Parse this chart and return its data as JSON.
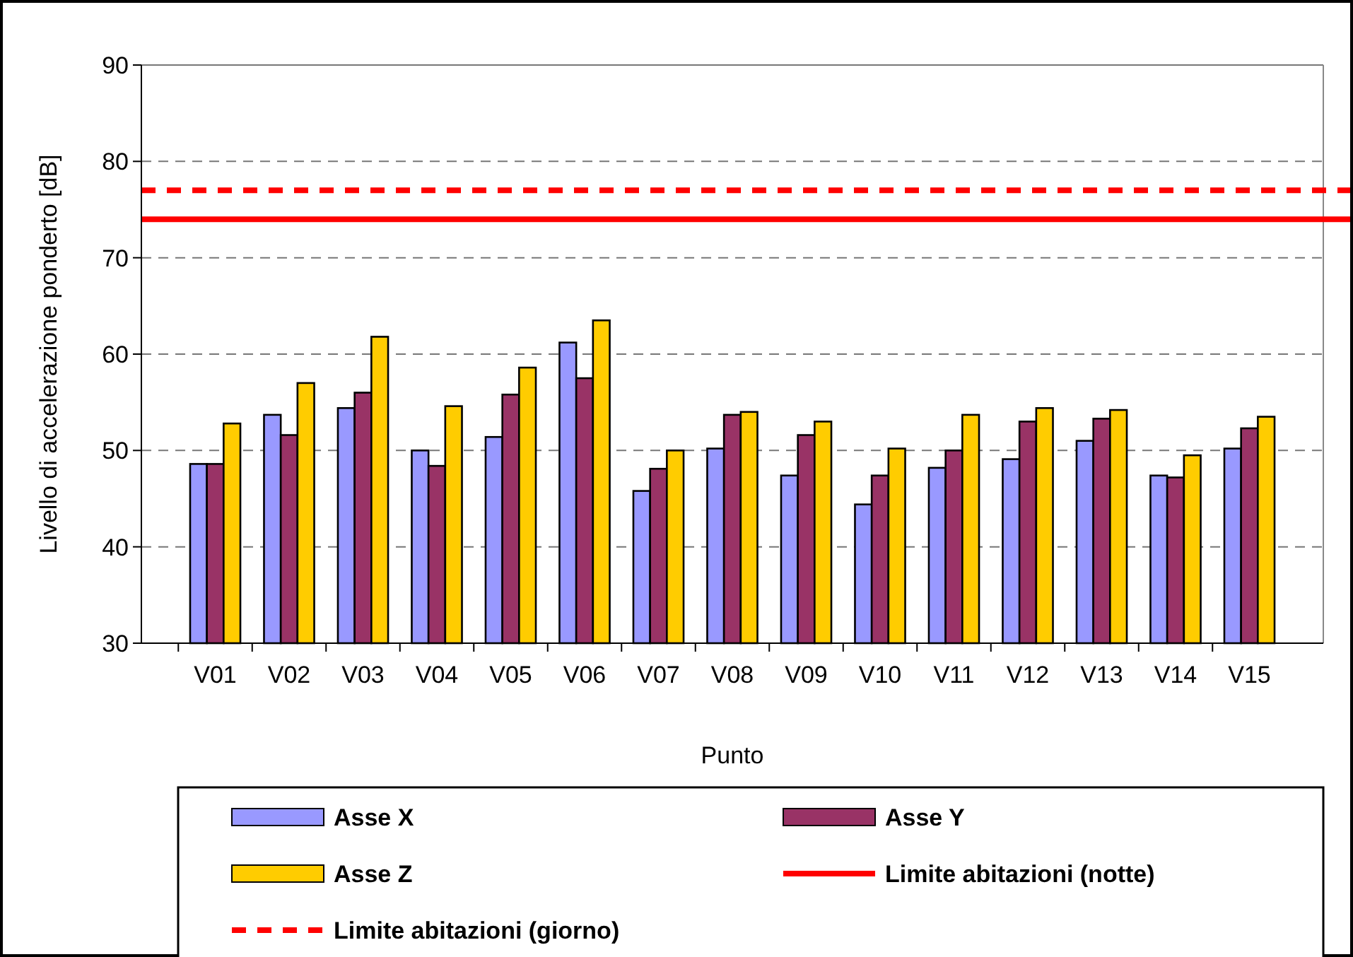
{
  "chart_data": {
    "type": "bar",
    "xlabel": "Punto",
    "ylabel": "Livello di accelerazione ponderto [dB]",
    "categories": [
      "V01",
      "V02",
      "V03",
      "V04",
      "V05",
      "V06",
      "V07",
      "V08",
      "V09",
      "V10",
      "V11",
      "V12",
      "V13",
      "V14",
      "V15"
    ],
    "series": [
      {
        "name": "Asse X",
        "color": "#9999ff",
        "values": [
          48.6,
          53.7,
          54.4,
          50,
          51.4,
          61.2,
          45.8,
          50.2,
          47.4,
          44.4,
          48.2,
          49.1,
          51,
          47.4,
          50.2
        ]
      },
      {
        "name": "Asse Y",
        "color": "#993366",
        "values": [
          48.6,
          51.6,
          56,
          48.4,
          55.8,
          57.5,
          48.1,
          53.7,
          51.6,
          47.4,
          50,
          53,
          53.3,
          47.2,
          52.3
        ]
      },
      {
        "name": "Asse Z",
        "color": "#ffcc00",
        "values": [
          52.8,
          57,
          61.8,
          54.6,
          58.6,
          63.5,
          50,
          54,
          53,
          50.2,
          53.7,
          54.4,
          54.2,
          49.5,
          53.5
        ]
      }
    ],
    "ref_lines": [
      {
        "axis": "y",
        "value": 74,
        "label": "Limite abitazioni (notte)",
        "color": "#ff0000",
        "line_style": "solid"
      },
      {
        "axis": "y",
        "value": 77,
        "label": "Limite abitazioni (giorno)",
        "color": "#ff0000",
        "line_style": "dashed"
      }
    ],
    "ylim": [
      30,
      90
    ],
    "yticks": [
      30,
      40,
      50,
      60,
      70,
      80,
      90
    ],
    "grid": "y",
    "legend": "bottom"
  }
}
